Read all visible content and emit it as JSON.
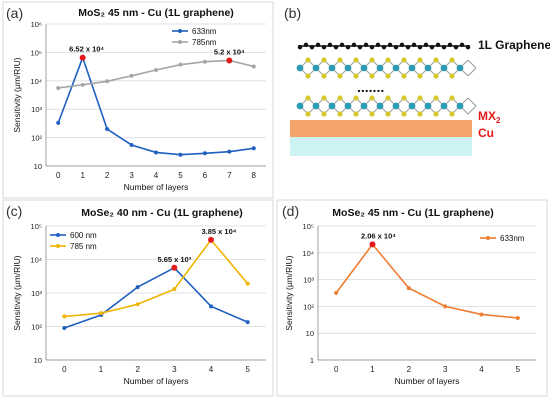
{
  "chart_data": [
    {
      "panel": "(a)",
      "type": "line",
      "title": "MoS₂ 45 nm - Cu (1L graphene)",
      "xlabel": "Number of layers",
      "ylabel": "Sensitivity (μm/RIU)",
      "yscale": "log",
      "ylim": [
        10,
        1000000
      ],
      "yticks": [
        "10",
        "10²",
        "10³",
        "10⁴",
        "10⁵",
        "10⁶"
      ],
      "xlim": [
        -0.5,
        8.5
      ],
      "x": [
        0,
        1,
        2,
        3,
        4,
        5,
        6,
        7,
        8
      ],
      "legend_position": "top-right",
      "series": [
        {
          "name": "633nm",
          "color": "#1f5fbf",
          "values": [
            330,
            65200,
            200,
            55,
            30,
            25,
            28,
            32,
            42
          ]
        },
        {
          "name": "785nm",
          "color": "#a6a6a6",
          "values": [
            5600,
            7200,
            9600,
            15000,
            24000,
            37000,
            47000,
            52000,
            32000
          ]
        }
      ],
      "highlights": [
        {
          "x": 1,
          "y": 65200,
          "label": "6.52 x 10⁴"
        },
        {
          "x": 7,
          "y": 52000,
          "label": "5.2 x 10⁴"
        }
      ]
    },
    {
      "panel": "(c)",
      "type": "line",
      "title": "MoSe₂ 40 nm - Cu (1L graphene)",
      "xlabel": "Number of layers",
      "ylabel": "Sensitivity (μm/RIU)",
      "yscale": "log",
      "ylim": [
        10,
        100000
      ],
      "yticks": [
        "10",
        "10²",
        "10³",
        "10⁴",
        "10⁵"
      ],
      "xlim": [
        -0.5,
        5.5
      ],
      "x": [
        0,
        1,
        2,
        3,
        4,
        5
      ],
      "legend_position": "top-left",
      "series": [
        {
          "name": "600 nm",
          "color": "#1f5fbf",
          "values": [
            90,
            220,
            1500,
            5650,
            400,
            135
          ]
        },
        {
          "name": "785 nm",
          "color": "#f0b400",
          "values": [
            200,
            250,
            460,
            1300,
            38500,
            1900
          ]
        }
      ],
      "highlights": [
        {
          "x": 3,
          "y": 5650,
          "label": "5.65 x 10³"
        },
        {
          "x": 4,
          "y": 38500,
          "label": "3.85 x 10⁴"
        }
      ]
    },
    {
      "panel": "(d)",
      "type": "line",
      "title": "MoSe₂ 45 nm - Cu (1L graphene)",
      "xlabel": "Number of layers",
      "ylabel": "Sensitivity (μm/RIU)",
      "yscale": "log",
      "ylim": [
        1,
        100000
      ],
      "yticks": [
        "1",
        "10",
        "10²",
        "10³",
        "10⁴",
        "10⁵"
      ],
      "xlim": [
        -0.5,
        5.5
      ],
      "x": [
        0,
        1,
        2,
        3,
        4,
        5
      ],
      "legend_position": "top-right",
      "series": [
        {
          "name": "633nm",
          "color": "#ed7d31",
          "values": [
            320,
            20600,
            480,
            100,
            50,
            37
          ]
        }
      ],
      "highlights": [
        {
          "x": 1,
          "y": 20600,
          "label": "2.06 x 10⁴"
        }
      ]
    }
  ],
  "schematic": {
    "panel": "(b)",
    "labels": {
      "graphene": "1L Graphene",
      "mx2": "MX",
      "mx2_sub": "2",
      "cu": "Cu",
      "dots": "......."
    },
    "colors": {
      "graphene": "#111111",
      "metal_atom": "#2a9db5",
      "chalcogen": "#d8c828",
      "mx2_label": "#e31a1c",
      "cu_label": "#e31a1c",
      "cu_layer": "#f5a46b",
      "substrate": "#cdf2f4"
    }
  }
}
